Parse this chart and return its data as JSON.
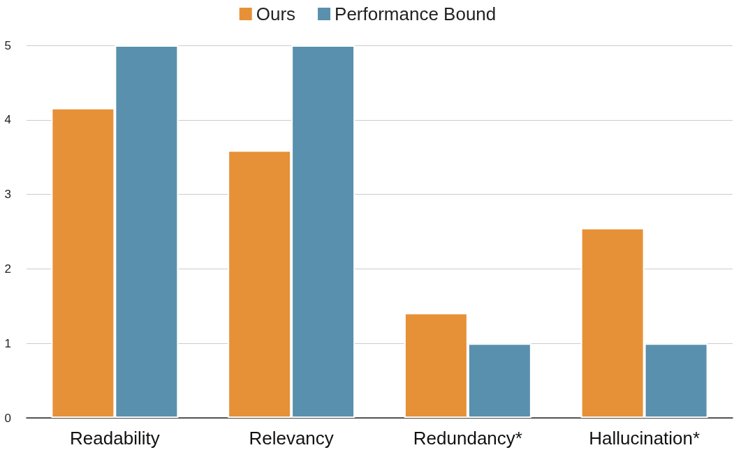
{
  "chart_data": {
    "type": "bar",
    "categories": [
      "Readability",
      "Relevancy",
      "Redundancy*",
      "Hallucination*"
    ],
    "series": [
      {
        "name": "Ours",
        "color": "#e69138",
        "values": [
          4.16,
          3.59,
          1.41,
          2.55
        ]
      },
      {
        "name": "Performance Bound",
        "color": "#5990ae",
        "values": [
          5,
          5,
          1,
          1
        ]
      }
    ],
    "ylim": [
      0,
      5
    ],
    "yticks": [
      0,
      1,
      2,
      3,
      4,
      5
    ],
    "grid": "y",
    "legend": "top"
  }
}
